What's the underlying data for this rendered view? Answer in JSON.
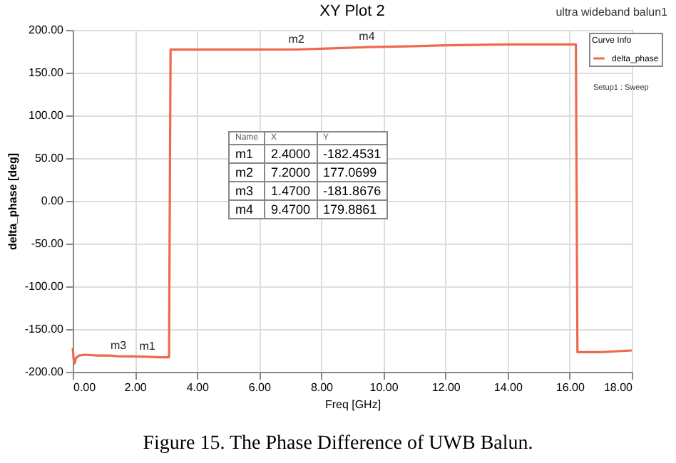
{
  "chart_data": {
    "type": "line",
    "title": "XY Plot 2",
    "xlabel": "Freq [GHz]",
    "ylabel": "delta_phase [deg]",
    "legend_title": "Curve Info",
    "series": [
      {
        "name": "delta_phase",
        "color": "#ee6a4e",
        "x": [
          0,
          0.03,
          0.06,
          0.1,
          0.2,
          0.4,
          0.8,
          1.2,
          1.47,
          2,
          2.4,
          2.8,
          3.1,
          3.15,
          3.5,
          5,
          7.2,
          8,
          9.47,
          11,
          12,
          14,
          16.2,
          16.25,
          16.5,
          17,
          18
        ],
        "values": [
          -172,
          -186,
          -190,
          -184,
          -181,
          -180,
          -181,
          -181,
          -181.8676,
          -182,
          -182.4531,
          -183,
          -183,
          177,
          177,
          177,
          177.0699,
          178,
          179.8861,
          181,
          182,
          183,
          183,
          -177,
          -177,
          -177,
          -175
        ]
      }
    ],
    "xlim": [
      0,
      18
    ],
    "xticks": [
      {
        "value": 0,
        "label": "0.00"
      },
      {
        "value": 2,
        "label": "2.00"
      },
      {
        "value": 4,
        "label": "4.00"
      },
      {
        "value": 6,
        "label": "6.00"
      },
      {
        "value": 8,
        "label": "8.00"
      },
      {
        "value": 10,
        "label": "10.00"
      },
      {
        "value": 12,
        "label": "12.00"
      },
      {
        "value": 14,
        "label": "14.00"
      },
      {
        "value": 16,
        "label": "16.00"
      },
      {
        "value": 18,
        "label": "18.00"
      }
    ],
    "ylim": [
      -200,
      200
    ],
    "yticks": [
      {
        "value": -200,
        "label": "-200.00"
      },
      {
        "value": -150,
        "label": "-150.00"
      },
      {
        "value": -100,
        "label": "-100.00"
      },
      {
        "value": -50,
        "label": "-50.00"
      },
      {
        "value": 0,
        "label": "0.00"
      },
      {
        "value": 50,
        "label": "50.00"
      },
      {
        "value": 100,
        "label": "100.00"
      },
      {
        "value": 150,
        "label": "150.00"
      },
      {
        "value": 200,
        "label": "200.00"
      }
    ],
    "grid": true,
    "legend": "top right",
    "line_style": "solid",
    "marker": "none",
    "annotations": [
      "Setup1 : Sweep",
      "ultra wideband balun1",
      "Figure 15. The Phase Difference of  UWB Balun.",
      "Name",
      "X",
      "Y",
      "m1",
      "2.4000",
      "-182.4531",
      "m2",
      "7.2000",
      "177.0699",
      "m3",
      "1.4700",
      "-181.8676",
      "m4",
      "9.4700",
      "179.8861",
      {
        "text": "m1",
        "x": 2.4,
        "y": -182.4531
      },
      {
        "text": "m2",
        "x": 7.2,
        "y": 177.0699
      },
      {
        "text": "m3",
        "x": 1.47,
        "y": -181.8676
      },
      {
        "text": "m4",
        "x": 9.47,
        "y": 179.8861
      }
    ]
  }
}
